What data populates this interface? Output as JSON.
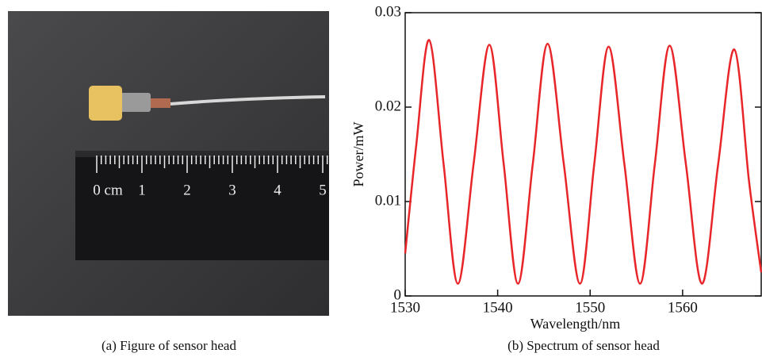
{
  "photo": {
    "ruler_labels": [
      "0 cm",
      "1",
      "2",
      "3",
      "4",
      "5"
    ]
  },
  "captions": [
    "(a) Figure of sensor head",
    "(b) Spectrum of sensor head"
  ],
  "chart_data": {
    "type": "line",
    "xlabel": "Wavelength/nm",
    "ylabel": "Power/mW",
    "x": [
      1530,
      1531.2,
      1532.6,
      1534.15,
      1535.7,
      1537.4,
      1539.1,
      1540.65,
      1542.2,
      1543.8,
      1545.4,
      1547.15,
      1548.9,
      1550.45,
      1552.0,
      1553.7,
      1555.4,
      1557.0,
      1558.6,
      1560.35,
      1562.1,
      1563.85,
      1565.6,
      1567.2,
      1568.5
    ],
    "series": [
      {
        "color": "#e8262a",
        "values": [
          0.0045,
          0.016,
          0.0271,
          0.014,
          0.0013,
          0.014,
          0.0266,
          0.014,
          0.0013,
          0.014,
          0.0267,
          0.014,
          0.0013,
          0.014,
          0.0264,
          0.014,
          0.0013,
          0.014,
          0.0265,
          0.014,
          0.0013,
          0.014,
          0.0261,
          0.012,
          0.0025
        ]
      }
    ],
    "xlim": [
      1530,
      1568.5
    ],
    "xticks": [
      1530,
      1540,
      1550,
      1560
    ],
    "ylim": [
      0,
      0.03
    ],
    "yticks": [
      0,
      0.01,
      0.02,
      0.03
    ]
  }
}
